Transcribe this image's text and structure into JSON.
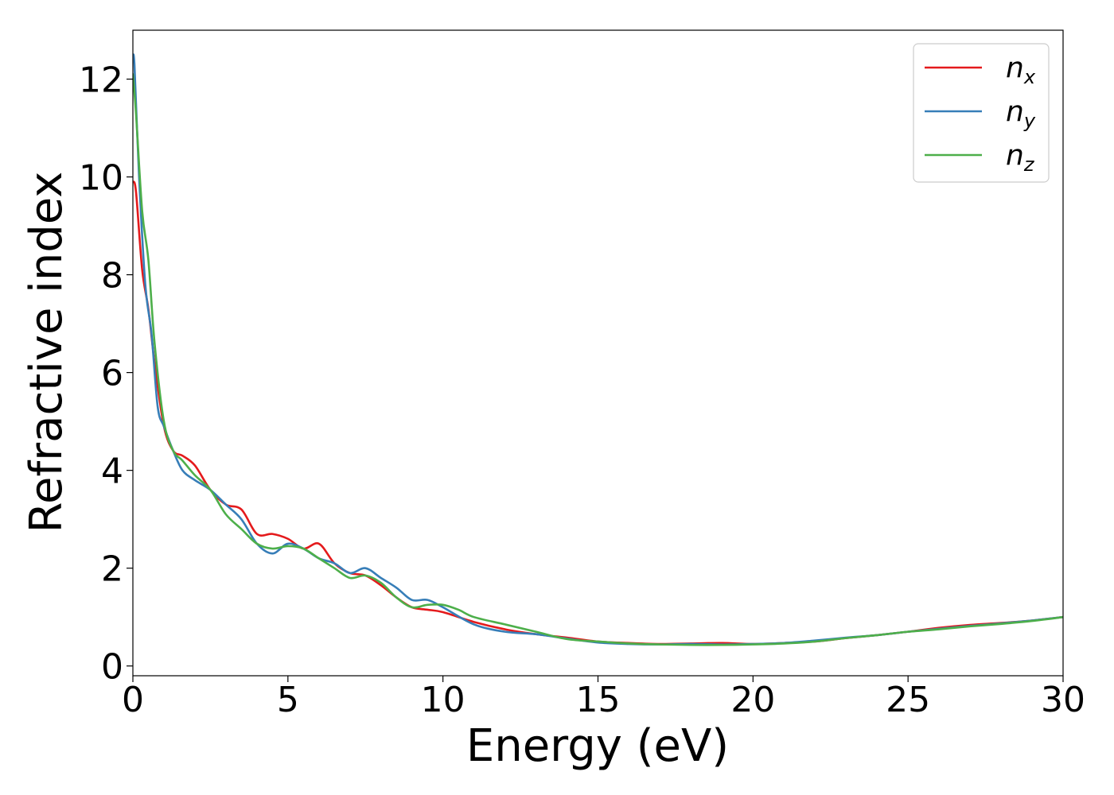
{
  "chart_data": {
    "type": "line",
    "title": "",
    "xlabel": "Energy (eV)",
    "ylabel": "Refractive index",
    "xlim": [
      0,
      30
    ],
    "ylim": [
      -0.2,
      13
    ],
    "xticks": [
      0,
      5,
      10,
      15,
      20,
      25,
      30
    ],
    "yticks": [
      0,
      2,
      4,
      6,
      8,
      10,
      12
    ],
    "grid": false,
    "legend_position": "top-right",
    "series": [
      {
        "name": "n",
        "subscript": "x",
        "color": "#e41a1c",
        "x": [
          0,
          0.1,
          0.3,
          0.5,
          0.7,
          1.0,
          1.3,
          1.6,
          2.0,
          2.5,
          3.0,
          3.5,
          4.0,
          4.5,
          5.0,
          5.5,
          6.0,
          6.5,
          7.0,
          7.5,
          8.0,
          8.5,
          9.0,
          9.5,
          10.0,
          11.0,
          12.0,
          13.0,
          14.0,
          15.0,
          16.0,
          17.0,
          18.0,
          19.0,
          20.0,
          21.0,
          22.0,
          23.0,
          24.0,
          25.0,
          26.0,
          27.0,
          28.0,
          29.0,
          30.0
        ],
        "y": [
          9.9,
          9.7,
          8.1,
          7.3,
          6.2,
          4.9,
          4.4,
          4.3,
          4.1,
          3.6,
          3.3,
          3.2,
          2.7,
          2.7,
          2.6,
          2.4,
          2.5,
          2.1,
          1.9,
          1.85,
          1.65,
          1.4,
          1.2,
          1.15,
          1.1,
          0.9,
          0.75,
          0.65,
          0.58,
          0.5,
          0.47,
          0.45,
          0.46,
          0.47,
          0.45,
          0.47,
          0.5,
          0.57,
          0.63,
          0.7,
          0.78,
          0.84,
          0.88,
          0.93,
          1.0
        ]
      },
      {
        "name": "n",
        "subscript": "y",
        "color": "#377eb8",
        "x": [
          0,
          0.05,
          0.2,
          0.4,
          0.6,
          0.8,
          1.0,
          1.3,
          1.6,
          2.0,
          2.5,
          3.0,
          3.5,
          4.0,
          4.5,
          5.0,
          5.5,
          6.0,
          6.5,
          7.0,
          7.5,
          8.0,
          8.5,
          9.0,
          9.5,
          10.0,
          11.0,
          12.0,
          13.0,
          14.0,
          15.0,
          16.0,
          17.0,
          18.0,
          19.0,
          20.0,
          21.0,
          22.0,
          23.0,
          24.0,
          25.0,
          26.0,
          27.0,
          28.0,
          29.0,
          30.0
        ],
        "y": [
          12.4,
          12.3,
          10.0,
          7.8,
          6.8,
          5.3,
          4.9,
          4.4,
          4.0,
          3.8,
          3.6,
          3.3,
          3.0,
          2.5,
          2.3,
          2.5,
          2.4,
          2.2,
          2.1,
          1.9,
          2.0,
          1.8,
          1.6,
          1.35,
          1.35,
          1.2,
          0.85,
          0.7,
          0.65,
          0.56,
          0.48,
          0.45,
          0.44,
          0.45,
          0.44,
          0.45,
          0.47,
          0.52,
          0.58,
          0.63,
          0.7,
          0.76,
          0.82,
          0.87,
          0.93,
          1.0
        ]
      },
      {
        "name": "n",
        "subscript": "z",
        "color": "#4daf4a",
        "x": [
          0,
          0.1,
          0.3,
          0.5,
          0.7,
          1.0,
          1.3,
          1.6,
          2.0,
          2.5,
          3.0,
          3.5,
          4.0,
          4.5,
          5.0,
          5.5,
          6.0,
          6.5,
          7.0,
          7.5,
          8.0,
          8.5,
          9.0,
          9.5,
          10.0,
          10.5,
          11.0,
          12.0,
          13.0,
          14.0,
          15.0,
          16.0,
          17.0,
          18.0,
          19.0,
          20.0,
          21.0,
          22.0,
          23.0,
          24.0,
          25.0,
          26.0,
          27.0,
          28.0,
          29.0,
          30.0
        ],
        "y": [
          12.1,
          11.3,
          9.3,
          8.3,
          6.6,
          5.0,
          4.4,
          4.2,
          3.9,
          3.6,
          3.1,
          2.8,
          2.5,
          2.4,
          2.45,
          2.4,
          2.2,
          2.0,
          1.8,
          1.85,
          1.7,
          1.4,
          1.2,
          1.25,
          1.25,
          1.15,
          1.0,
          0.85,
          0.7,
          0.55,
          0.5,
          0.46,
          0.44,
          0.43,
          0.43,
          0.44,
          0.46,
          0.5,
          0.57,
          0.63,
          0.7,
          0.75,
          0.81,
          0.86,
          0.92,
          1.0
        ]
      }
    ]
  }
}
